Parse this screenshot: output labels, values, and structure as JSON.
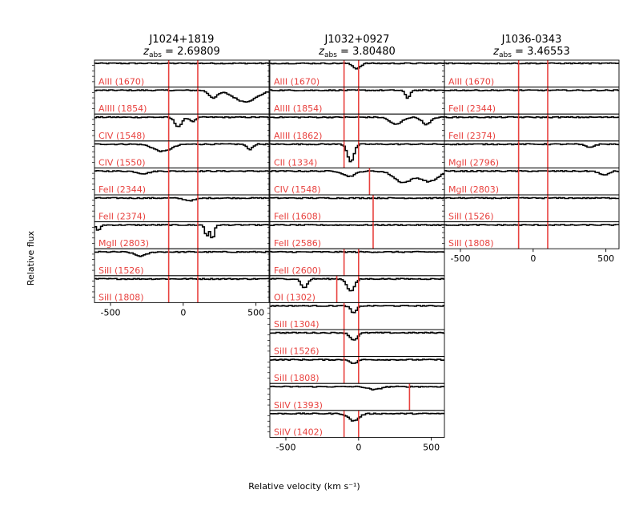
{
  "figure": {
    "xlabel": "Relative velocity (km s⁻¹)",
    "ylabel": "Relative flux"
  },
  "chart_data": [
    {
      "type": "line",
      "title": "J1024+1819",
      "subtitle": "z_abs = 2.69809",
      "z_label": "z",
      "z_sub": "abs",
      "z_value": " = 2.69809",
      "xlim": [
        -610,
        590
      ],
      "xticks": [
        -500,
        0,
        500
      ],
      "xtick_labels": [
        "-500",
        "0",
        "500"
      ],
      "vlines": [
        -100,
        100
      ],
      "panels": [
        {
          "ion": "AlII (1670)",
          "features": []
        },
        {
          "ion": "AlIII (1854)",
          "features": [
            {
              "v": 200,
              "depth": 0.35,
              "width": 30
            },
            {
              "v": 420,
              "depth": 0.55,
              "width": 80
            }
          ]
        },
        {
          "ion": "CIV (1548)",
          "features": [
            {
              "v": -40,
              "depth": 0.45,
              "width": 25
            },
            {
              "v": 60,
              "depth": 0.2,
              "width": 20
            }
          ]
        },
        {
          "ion": "CIV (1550)",
          "features": [
            {
              "v": -150,
              "depth": 0.35,
              "width": 60
            },
            {
              "v": 450,
              "depth": 0.25,
              "width": 20
            }
          ]
        },
        {
          "ion": "FeII (2344)",
          "features": [
            {
              "v": -280,
              "depth": 0.12,
              "width": 40
            }
          ]
        },
        {
          "ion": "FeII (2374)",
          "features": [
            {
              "v": 40,
              "depth": 0.12,
              "width": 40
            }
          ]
        },
        {
          "ion": "MgII (2803)",
          "features": [
            {
              "v": 155,
              "depth": 0.55,
              "width": 12
            },
            {
              "v": 195,
              "depth": 0.7,
              "width": 12
            },
            {
              "v": -590,
              "depth": 0.3,
              "width": 12
            }
          ]
        },
        {
          "ion": "SiII (1526)",
          "features": [
            {
              "v": -300,
              "depth": 0.2,
              "width": 40
            }
          ]
        },
        {
          "ion": "SiII (1808)",
          "features": []
        }
      ]
    },
    {
      "type": "line",
      "title": "J1032+0927",
      "subtitle": "z_abs = 3.80480",
      "z_label": "z",
      "z_sub": "abs",
      "z_value": " = 3.80480",
      "xlim": [
        -610,
        590
      ],
      "xticks": [
        -500,
        0,
        500
      ],
      "xtick_labels": [
        "-500",
        "0",
        "500"
      ],
      "vlines": [
        -100,
        0
      ],
      "panel_vlines": {
        "4": [
          75
        ],
        "5": [
          100
        ],
        "6": [
          100
        ],
        "8": [
          -150,
          0
        ],
        "12": [
          350
        ]
      },
      "panels": [
        {
          "ion": "AlII (1670)",
          "features": [
            {
              "v": -20,
              "depth": 0.25,
              "width": 25
            }
          ]
        },
        {
          "ion": "AlIII (1854)",
          "features": [
            {
              "v": 330,
              "depth": 0.4,
              "width": 15
            }
          ]
        },
        {
          "ion": "AlIII (1862)",
          "features": [
            {
              "v": 250,
              "depth": 0.35,
              "width": 40
            },
            {
              "v": 460,
              "depth": 0.35,
              "width": 30
            }
          ]
        },
        {
          "ion": "CII (1334)",
          "features": [
            {
              "v": -60,
              "depth": 0.85,
              "width": 22
            }
          ]
        },
        {
          "ion": "CIV (1548)",
          "features": [
            {
              "v": -70,
              "depth": 0.25,
              "width": 40
            },
            {
              "v": 300,
              "depth": 0.55,
              "width": 60
            },
            {
              "v": 480,
              "depth": 0.5,
              "width": 60
            }
          ]
        },
        {
          "ion": "FeII (1608)",
          "features": []
        },
        {
          "ion": "FeII (2586)",
          "features": []
        },
        {
          "ion": "FeII (2600)",
          "features": []
        },
        {
          "ion": "OI (1302)",
          "features": [
            {
              "v": -380,
              "depth": 0.45,
              "width": 20
            },
            {
              "v": -60,
              "depth": 0.6,
              "width": 25
            }
          ]
        },
        {
          "ion": "SiII (1304)",
          "features": [
            {
              "v": -40,
              "depth": 0.35,
              "width": 20
            }
          ]
        },
        {
          "ion": "SiII (1526)",
          "features": [
            {
              "v": -40,
              "depth": 0.35,
              "width": 25
            }
          ]
        },
        {
          "ion": "SiII (1808)",
          "features": [
            {
              "v": -40,
              "depth": 0.2,
              "width": 20
            }
          ]
        },
        {
          "ion": "SiIV (1393)",
          "features": [
            {
              "v": 100,
              "depth": 0.15,
              "width": 40
            }
          ]
        },
        {
          "ion": "SiIV (1402)",
          "features": [
            {
              "v": -40,
              "depth": 0.35,
              "width": 35
            }
          ]
        }
      ]
    },
    {
      "type": "line",
      "title": "J1036-0343",
      "subtitle": "z_abs = 3.46553",
      "z_label": "z",
      "z_sub": "abs",
      "z_value": " = 3.46553",
      "xlim": [
        -610,
        590
      ],
      "xticks": [
        -500,
        0,
        500
      ],
      "xtick_labels": [
        "-500",
        "0",
        "500"
      ],
      "vlines": [
        -100,
        100
      ],
      "panels": [
        {
          "ion": "AlII (1670)",
          "features": []
        },
        {
          "ion": "FeII (2344)",
          "features": []
        },
        {
          "ion": "FeII (2374)",
          "features": []
        },
        {
          "ion": "MgII (2796)",
          "features": [
            {
              "v": 380,
              "depth": 0.15,
              "width": 30
            }
          ]
        },
        {
          "ion": "MgII (2803)",
          "features": [
            {
              "v": 480,
              "depth": 0.2,
              "width": 30
            }
          ]
        },
        {
          "ion": "SiII (1526)",
          "features": []
        },
        {
          "ion": "SiII (1808)",
          "features": []
        }
      ]
    }
  ]
}
